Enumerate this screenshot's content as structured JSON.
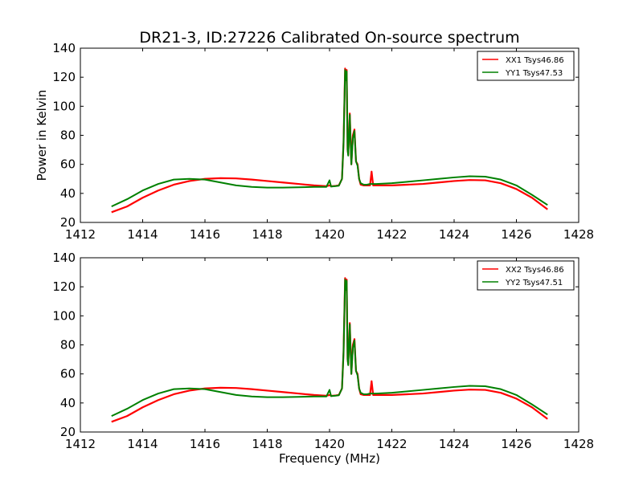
{
  "title": "DR21-3, ID:27226 Calibrated On-source spectrum",
  "chart_data": [
    {
      "type": "line",
      "title": "DR21-3, ID:27226 Calibrated On-source spectrum",
      "xlabel": "",
      "ylabel": "Power in Kelvin",
      "xlim": [
        1412,
        1428
      ],
      "ylim": [
        20,
        140
      ],
      "xticks": [
        "1412",
        "1414",
        "1416",
        "1418",
        "1420",
        "1422",
        "1424",
        "1426",
        "1428"
      ],
      "yticks": [
        "20",
        "40",
        "60",
        "80",
        "100",
        "120",
        "140"
      ],
      "grid": false,
      "legend_position": "top-right",
      "series": [
        {
          "name": "XX1 Tsys46.86",
          "color": "#ff0000",
          "x": [
            1413.0,
            1413.5,
            1414.0,
            1414.5,
            1415.0,
            1415.5,
            1416.0,
            1416.5,
            1417.0,
            1417.5,
            1418.0,
            1418.5,
            1419.0,
            1419.5,
            1419.9,
            1420.0,
            1420.05,
            1420.1,
            1420.2,
            1420.3,
            1420.4,
            1420.45,
            1420.5,
            1420.52,
            1420.55,
            1420.58,
            1420.6,
            1420.65,
            1420.7,
            1420.75,
            1420.8,
            1420.85,
            1420.9,
            1420.95,
            1421.0,
            1421.1,
            1421.2,
            1421.3,
            1421.35,
            1421.4,
            1421.5,
            1422.0,
            1422.5,
            1423.0,
            1423.5,
            1424.0,
            1424.5,
            1425.0,
            1425.5,
            1426.0,
            1426.5,
            1427.0
          ],
          "y": [
            27,
            31,
            37,
            42,
            46,
            48.5,
            50,
            50.5,
            50.3,
            49.5,
            48.5,
            47.5,
            46.5,
            45.5,
            45,
            45.5,
            45,
            45,
            45.2,
            45.5,
            50,
            75,
            126,
            118,
            125,
            70,
            67,
            95,
            60,
            80,
            84,
            62,
            60,
            50,
            46,
            45.5,
            45.5,
            45.5,
            55,
            45.5,
            45.5,
            45.5,
            46,
            46.5,
            47.5,
            48.5,
            49.2,
            49,
            47,
            43,
            37,
            29
          ]
        },
        {
          "name": "YY1 Tsys47.53",
          "color": "#008000",
          "x": [
            1413.0,
            1413.5,
            1414.0,
            1414.5,
            1415.0,
            1415.5,
            1416.0,
            1416.5,
            1417.0,
            1417.5,
            1418.0,
            1418.5,
            1419.0,
            1419.5,
            1419.9,
            1420.0,
            1420.05,
            1420.1,
            1420.2,
            1420.3,
            1420.4,
            1420.45,
            1420.5,
            1420.52,
            1420.55,
            1420.58,
            1420.6,
            1420.65,
            1420.7,
            1420.75,
            1420.8,
            1420.85,
            1420.9,
            1420.95,
            1421.0,
            1421.1,
            1421.2,
            1421.3,
            1421.35,
            1421.4,
            1421.5,
            1422.0,
            1422.5,
            1423.0,
            1423.5,
            1424.0,
            1424.5,
            1425.0,
            1425.5,
            1426.0,
            1426.5,
            1427.0
          ],
          "y": [
            31,
            36,
            42,
            46.5,
            49.5,
            50,
            49.5,
            47.5,
            45.5,
            44.5,
            44,
            44,
            44.2,
            44.5,
            44.5,
            49,
            44.7,
            44.8,
            45,
            45.3,
            50,
            75,
            125,
            118,
            124,
            70,
            66,
            94,
            60,
            78,
            83,
            62,
            59,
            50,
            47,
            46,
            46,
            46.5,
            46.5,
            46.5,
            46.5,
            47,
            48,
            49,
            50,
            51,
            51.8,
            51.5,
            49.5,
            45.5,
            39,
            32
          ]
        }
      ]
    },
    {
      "type": "line",
      "title": "",
      "xlabel": "Frequency (MHz)",
      "ylabel": "",
      "xlim": [
        1412,
        1428
      ],
      "ylim": [
        20,
        140
      ],
      "xticks": [
        "1412",
        "1414",
        "1416",
        "1418",
        "1420",
        "1422",
        "1424",
        "1426",
        "1428"
      ],
      "yticks": [
        "20",
        "40",
        "60",
        "80",
        "100",
        "120",
        "140"
      ],
      "grid": false,
      "legend_position": "top-right",
      "series": [
        {
          "name": "XX2 Tsys46.86",
          "color": "#ff0000",
          "x": [
            1413.0,
            1413.5,
            1414.0,
            1414.5,
            1415.0,
            1415.5,
            1416.0,
            1416.5,
            1417.0,
            1417.5,
            1418.0,
            1418.5,
            1419.0,
            1419.5,
            1419.9,
            1420.0,
            1420.05,
            1420.1,
            1420.2,
            1420.3,
            1420.4,
            1420.45,
            1420.5,
            1420.52,
            1420.55,
            1420.58,
            1420.6,
            1420.65,
            1420.7,
            1420.75,
            1420.8,
            1420.85,
            1420.9,
            1420.95,
            1421.0,
            1421.1,
            1421.2,
            1421.3,
            1421.35,
            1421.4,
            1421.5,
            1422.0,
            1422.5,
            1423.0,
            1423.5,
            1424.0,
            1424.5,
            1425.0,
            1425.5,
            1426.0,
            1426.5,
            1427.0
          ],
          "y": [
            27,
            31,
            37,
            42,
            46,
            48.5,
            50,
            50.5,
            50.3,
            49.5,
            48.5,
            47.5,
            46.5,
            45.5,
            45,
            45.5,
            45,
            45,
            45.2,
            45.5,
            50,
            75,
            126,
            118,
            125,
            70,
            67,
            95,
            60,
            80,
            84,
            62,
            60,
            50,
            46,
            45.5,
            45.5,
            45.5,
            55,
            45.5,
            45.5,
            45.5,
            46,
            46.5,
            47.5,
            48.5,
            49.2,
            49,
            47,
            43,
            37,
            29
          ]
        },
        {
          "name": "YY2 Tsys47.51",
          "color": "#008000",
          "x": [
            1413.0,
            1413.5,
            1414.0,
            1414.5,
            1415.0,
            1415.5,
            1416.0,
            1416.5,
            1417.0,
            1417.5,
            1418.0,
            1418.5,
            1419.0,
            1419.5,
            1419.9,
            1420.0,
            1420.05,
            1420.1,
            1420.2,
            1420.3,
            1420.4,
            1420.45,
            1420.5,
            1420.52,
            1420.55,
            1420.58,
            1420.6,
            1420.65,
            1420.7,
            1420.75,
            1420.8,
            1420.85,
            1420.9,
            1420.95,
            1421.0,
            1421.1,
            1421.2,
            1421.3,
            1421.35,
            1421.4,
            1421.5,
            1422.0,
            1422.5,
            1423.0,
            1423.5,
            1424.0,
            1424.5,
            1425.0,
            1425.5,
            1426.0,
            1426.5,
            1427.0
          ],
          "y": [
            31,
            36,
            42,
            46.5,
            49.5,
            50,
            49.5,
            47.5,
            45.5,
            44.5,
            44,
            44,
            44.2,
            44.5,
            44.5,
            49,
            44.7,
            44.8,
            45,
            45.3,
            50,
            75,
            125,
            118,
            124,
            70,
            66,
            94,
            60,
            78,
            83,
            62,
            59,
            50,
            47,
            46,
            46,
            46.5,
            46.5,
            46.5,
            46.5,
            47,
            48,
            49,
            50,
            51,
            51.8,
            51.5,
            49.5,
            45.5,
            39,
            32
          ]
        }
      ]
    }
  ]
}
